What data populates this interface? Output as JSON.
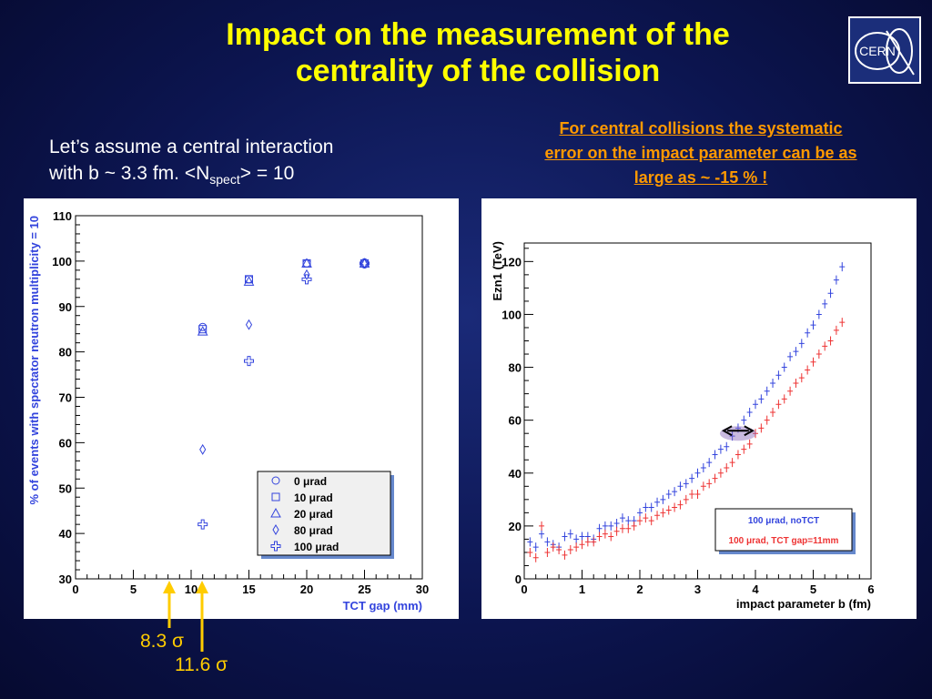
{
  "title_line1": "Impact on the measurement of the",
  "title_line2": "centrality of the collision",
  "logo_text": "CERN",
  "intro": {
    "line1": "Let’s assume a central interaction",
    "line2_prefix": "with b ~ 3.3 fm. <N",
    "line2_sub": "spect",
    "line2_suffix": "> = 10"
  },
  "note": {
    "line1": "For central collisions the systematic",
    "line2": "error on the impact parameter can be as",
    "line3": "large as ~ -15 % !"
  },
  "sigma_labels": [
    "8.3 σ",
    "11.6 σ"
  ],
  "colors": {
    "title": "#ffff00",
    "note": "#ff9900",
    "blue": "#3344dd",
    "red": "#ee3333",
    "sigma": "#ffcc00"
  },
  "chart_data": [
    {
      "type": "scatter",
      "xlabel": "TCT gap (mm)",
      "ylabel": "% of events with spectator neutron multiplicity = 10",
      "xlim": [
        0,
        30
      ],
      "ylim": [
        30,
        110
      ],
      "xticks": [
        0,
        5,
        10,
        15,
        20,
        25,
        30
      ],
      "yticks": [
        30,
        40,
        50,
        60,
        70,
        80,
        90,
        100,
        110
      ],
      "legend_position": "bottom-right",
      "series": [
        {
          "name": "0 μrad",
          "marker": "circle",
          "x": [
            11,
            15,
            20,
            25
          ],
          "y": [
            85.5,
            96,
            99.5,
            99.5
          ]
        },
        {
          "name": "10 μrad",
          "marker": "square",
          "x": [
            11,
            15,
            20,
            25
          ],
          "y": [
            85,
            96,
            99.5,
            99.5
          ]
        },
        {
          "name": "20 μrad",
          "marker": "triangle",
          "x": [
            11,
            15,
            20,
            25
          ],
          "y": [
            84.5,
            95.5,
            99.5,
            99.5
          ]
        },
        {
          "name": "80 μrad",
          "marker": "diamond",
          "x": [
            11,
            15,
            20,
            25
          ],
          "y": [
            58.5,
            86,
            97,
            99.5
          ]
        },
        {
          "name": "100 μrad",
          "marker": "cross",
          "x": [
            11,
            15,
            20,
            25
          ],
          "y": [
            42,
            78,
            96,
            99.5
          ]
        }
      ]
    },
    {
      "type": "scatter",
      "xlabel": "impact parameter b (fm)",
      "ylabel": "Ezn1 (TeV)",
      "xlim": [
        0,
        6
      ],
      "ylim": [
        0,
        127
      ],
      "xticks": [
        0,
        1,
        2,
        3,
        4,
        5,
        6
      ],
      "yticks": [
        0,
        20,
        40,
        60,
        80,
        100,
        120
      ],
      "legend_position": "bottom-right",
      "annotation": "double arrow between the two series near b ≈ 3.7 fm, E ≈ 56 TeV",
      "series": [
        {
          "name": "100 μrad, noTCT",
          "color": "#3344dd",
          "x": [
            0.1,
            0.2,
            0.3,
            0.4,
            0.5,
            0.6,
            0.7,
            0.8,
            0.9,
            1.0,
            1.1,
            1.2,
            1.3,
            1.4,
            1.5,
            1.6,
            1.7,
            1.8,
            1.9,
            2.0,
            2.1,
            2.2,
            2.3,
            2.4,
            2.5,
            2.6,
            2.7,
            2.8,
            2.9,
            3.0,
            3.1,
            3.2,
            3.3,
            3.4,
            3.5,
            3.6,
            3.7,
            3.8,
            3.9,
            4.0,
            4.1,
            4.2,
            4.3,
            4.4,
            4.5,
            4.6,
            4.7,
            4.8,
            4.9,
            5.0,
            5.1,
            5.2,
            5.3,
            5.4,
            5.5
          ],
          "y": [
            14,
            12,
            17,
            14,
            13,
            12,
            16,
            17,
            15,
            16,
            16,
            15,
            19,
            20,
            20,
            21,
            23,
            22,
            22,
            25,
            27,
            27,
            29,
            30,
            32,
            33,
            35,
            36,
            38,
            40,
            42,
            44,
            47,
            49,
            50,
            54,
            57,
            60,
            63,
            66,
            68,
            71,
            74,
            77,
            80,
            84,
            86,
            89,
            93,
            96,
            100,
            104,
            108,
            113,
            118
          ]
        },
        {
          "name": "100 μrad, TCT gap=11mm",
          "color": "#ee3333",
          "x": [
            0.1,
            0.2,
            0.3,
            0.4,
            0.5,
            0.6,
            0.7,
            0.8,
            0.9,
            1.0,
            1.1,
            1.2,
            1.3,
            1.4,
            1.5,
            1.6,
            1.7,
            1.8,
            1.9,
            2.0,
            2.1,
            2.2,
            2.3,
            2.4,
            2.5,
            2.6,
            2.7,
            2.8,
            2.9,
            3.0,
            3.1,
            3.2,
            3.3,
            3.4,
            3.5,
            3.6,
            3.7,
            3.8,
            3.9,
            4.0,
            4.1,
            4.2,
            4.3,
            4.4,
            4.5,
            4.6,
            4.7,
            4.8,
            4.9,
            5.0,
            5.1,
            5.2,
            5.3,
            5.4,
            5.5
          ],
          "y": [
            10,
            8,
            20,
            10,
            12,
            11,
            9,
            11,
            12,
            13,
            14,
            14,
            16,
            17,
            16,
            18,
            19,
            19,
            20,
            22,
            23,
            22,
            24,
            25,
            26,
            27,
            28,
            30,
            32,
            32,
            35,
            36,
            38,
            40,
            42,
            44,
            47,
            49,
            51,
            55,
            57,
            60,
            63,
            66,
            68,
            71,
            74,
            76,
            79,
            82,
            85,
            88,
            90,
            94,
            97
          ]
        }
      ]
    }
  ]
}
